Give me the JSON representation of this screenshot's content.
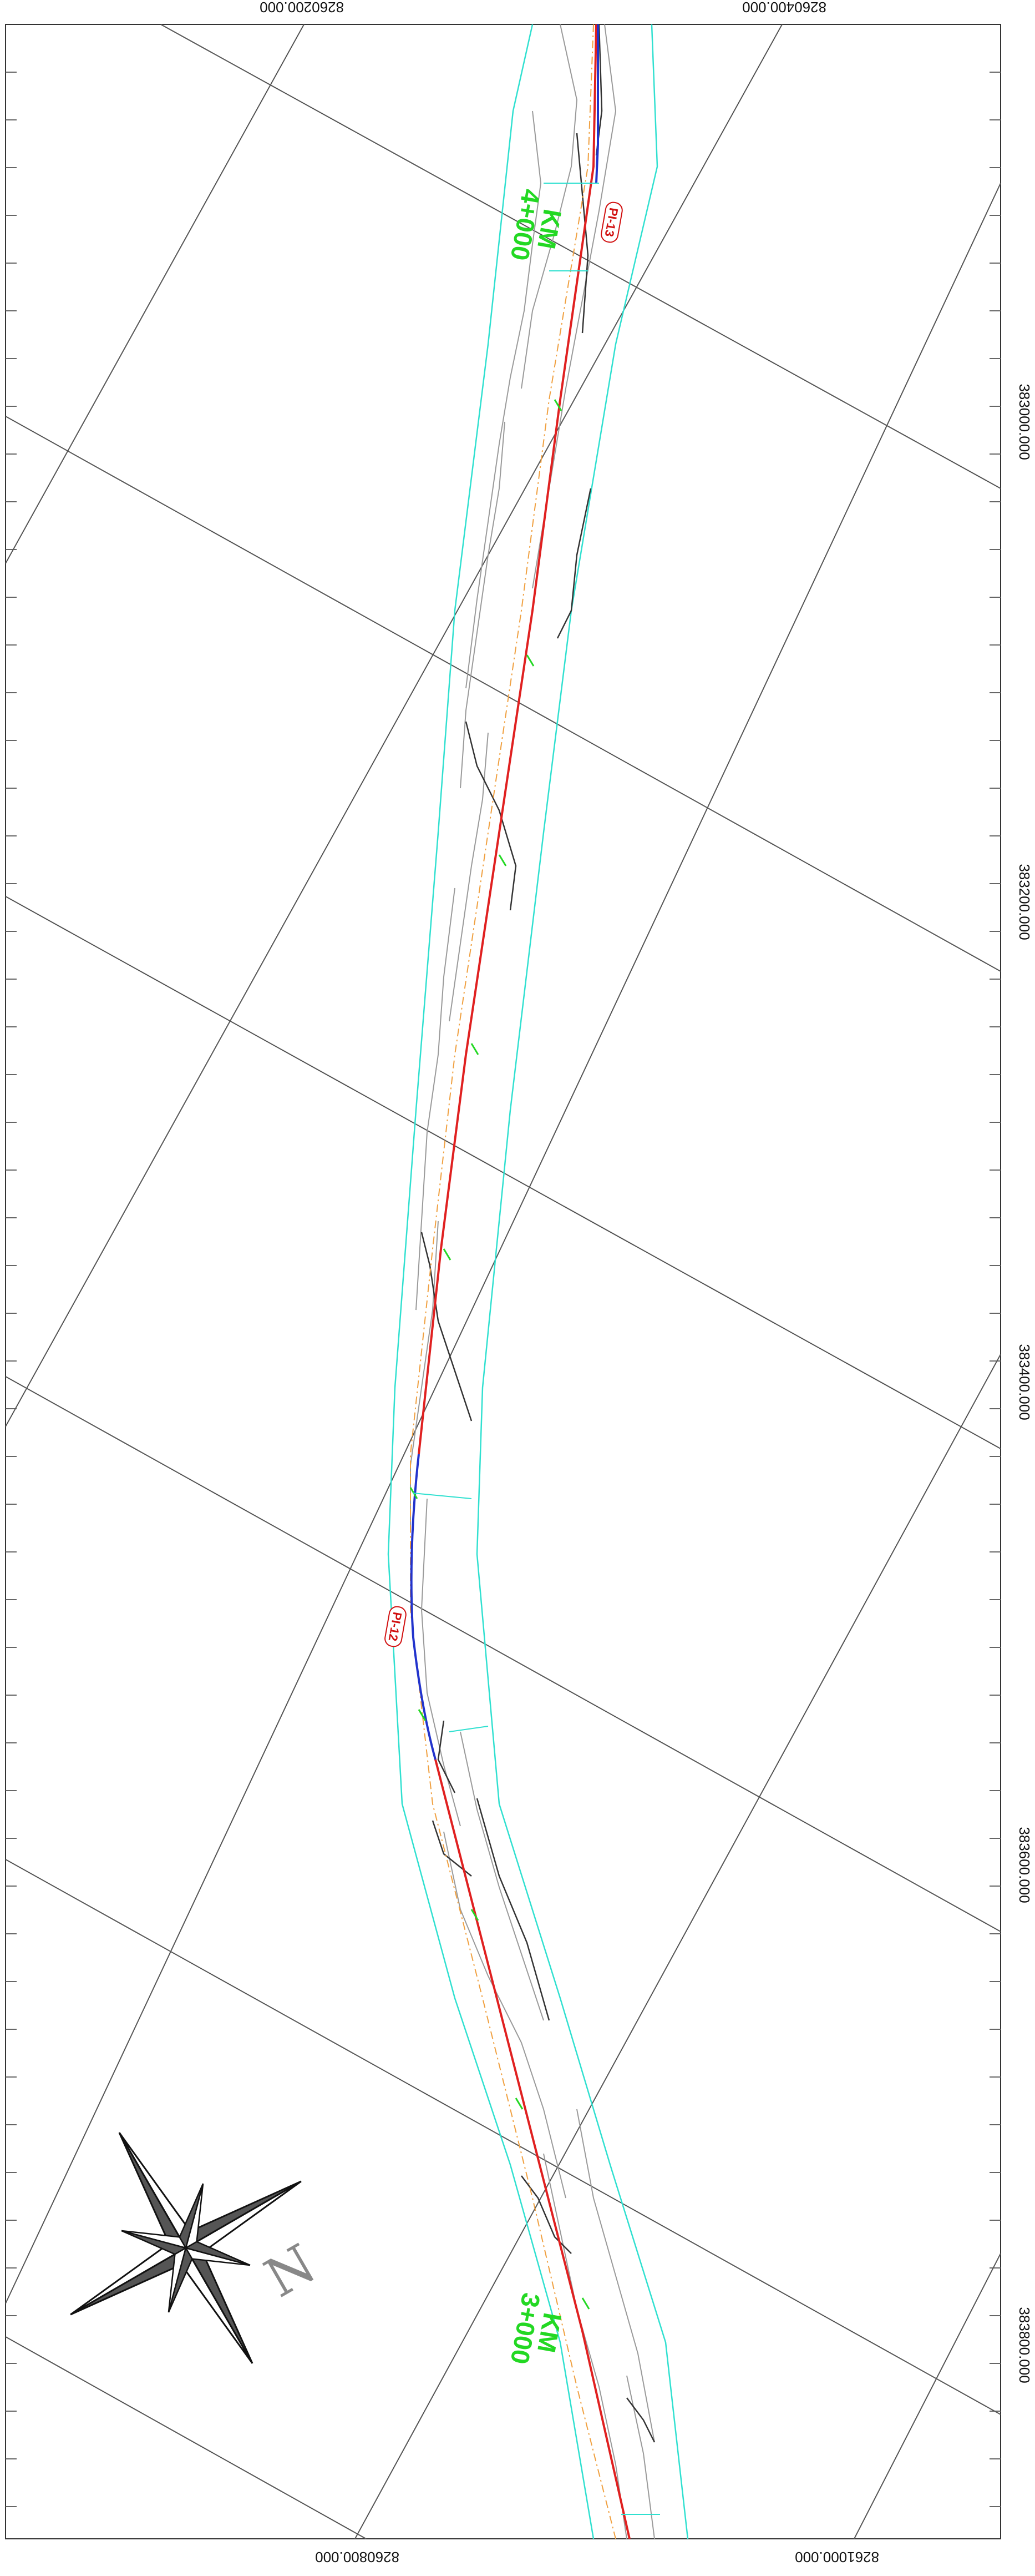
{
  "map": {
    "top_coords": [
      "8260200.000",
      "8260400.000"
    ],
    "bottom_coords": [
      "8260800.000",
      "8261000.000"
    ],
    "right_coords": [
      "383000.000",
      "383200.000",
      "383400.000",
      "383600.000",
      "383800.000"
    ],
    "km_labels": [
      {
        "km": "KM",
        "station": "4+000"
      },
      {
        "km": "KM",
        "station": "3+000"
      }
    ],
    "pi_labels": [
      "PI-13",
      "PI-12"
    ],
    "north_label": "N",
    "colors": {
      "alignment": "#e02020",
      "curve": "#2233cc",
      "boundary": "#30e0d0",
      "grid": "#555555",
      "contour": "#9a9a9a",
      "km": "#23d823",
      "pi": "#d11010",
      "offset": "#f0a040"
    }
  }
}
